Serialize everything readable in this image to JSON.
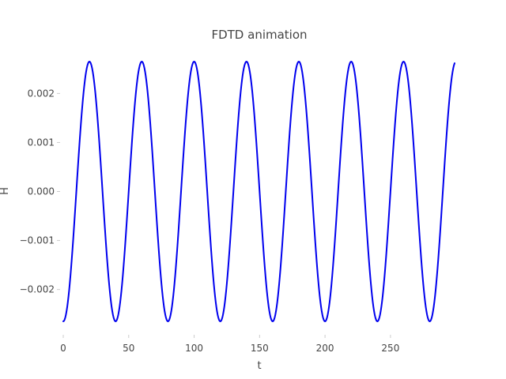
{
  "chart_data": {
    "type": "line",
    "title": "FDTD animation",
    "xlabel": "t",
    "ylabel": "H",
    "xlim": [
      0,
      300
    ],
    "ylim": [
      -0.0028,
      0.0028
    ],
    "grid": false,
    "xticks": [
      0,
      50,
      100,
      150,
      200,
      250
    ],
    "xtick_labels": [
      "0",
      "50",
      "100",
      "150",
      "200",
      "250"
    ],
    "yticks": [
      -0.002,
      -0.001,
      0.0,
      0.001,
      0.002
    ],
    "ytick_labels": [
      "−0.002",
      "−0.001",
      "0.000",
      "0.001",
      "0.002"
    ],
    "series": [
      {
        "color": "#0000ee",
        "x_start": 0,
        "x_end": 299,
        "x_step": 1,
        "function": "sine",
        "amplitude": 0.00265,
        "period": 40,
        "phase_offset": -0.25
      }
    ]
  }
}
